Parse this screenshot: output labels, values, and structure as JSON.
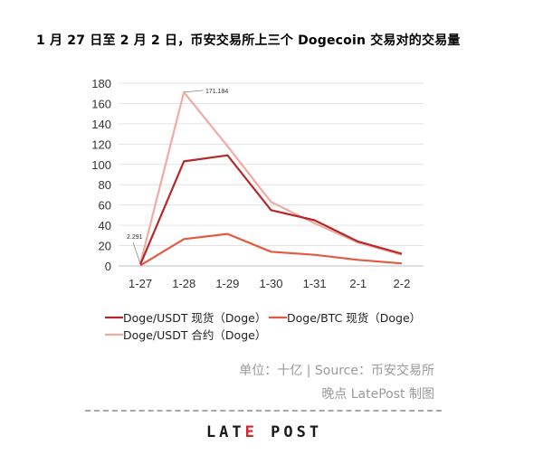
{
  "title": "1 月 27 日至 2 月 2 日，币安交易所上三个 Dogecoin 交易对的交易量",
  "footer": {
    "unit": "单位：十亿 | Source：币安交易所",
    "credit": "晚点 LatePost 制图",
    "logo": "LATE POST"
  },
  "chart_data": {
    "type": "line",
    "title": "1 月 27 日至 2 月 2 日，币安交易所上三个 Dogecoin 交易对的交易量",
    "categories": [
      "1-27",
      "1-28",
      "1-29",
      "1-30",
      "1-31",
      "2-1",
      "2-2"
    ],
    "ylim": [
      0,
      180
    ],
    "yticks": [
      0,
      20,
      40,
      60,
      80,
      100,
      120,
      140,
      160,
      180
    ],
    "grid": true,
    "legend_position": "bottom-left",
    "unit": "十亿",
    "series": [
      {
        "name": "Doge/USDT 现货（Doge）",
        "color": "#b5292b",
        "values": [
          1.5,
          103,
          109,
          55,
          45,
          24,
          12
        ]
      },
      {
        "name": "Doge/BTC 现货（Doge）",
        "color": "#e35a42",
        "values": [
          0.5,
          26.5,
          31.5,
          14,
          11,
          6,
          2.5
        ]
      },
      {
        "name": "Doge/USDT 合约（Doge）",
        "color": "#f2aaa4",
        "values": [
          2.291,
          171.184,
          118,
          63,
          42,
          23,
          11
        ]
      }
    ],
    "annotations": [
      {
        "series": 2,
        "index": 0,
        "text": "2.291"
      },
      {
        "series": 2,
        "index": 1,
        "text": "171.184"
      }
    ]
  }
}
